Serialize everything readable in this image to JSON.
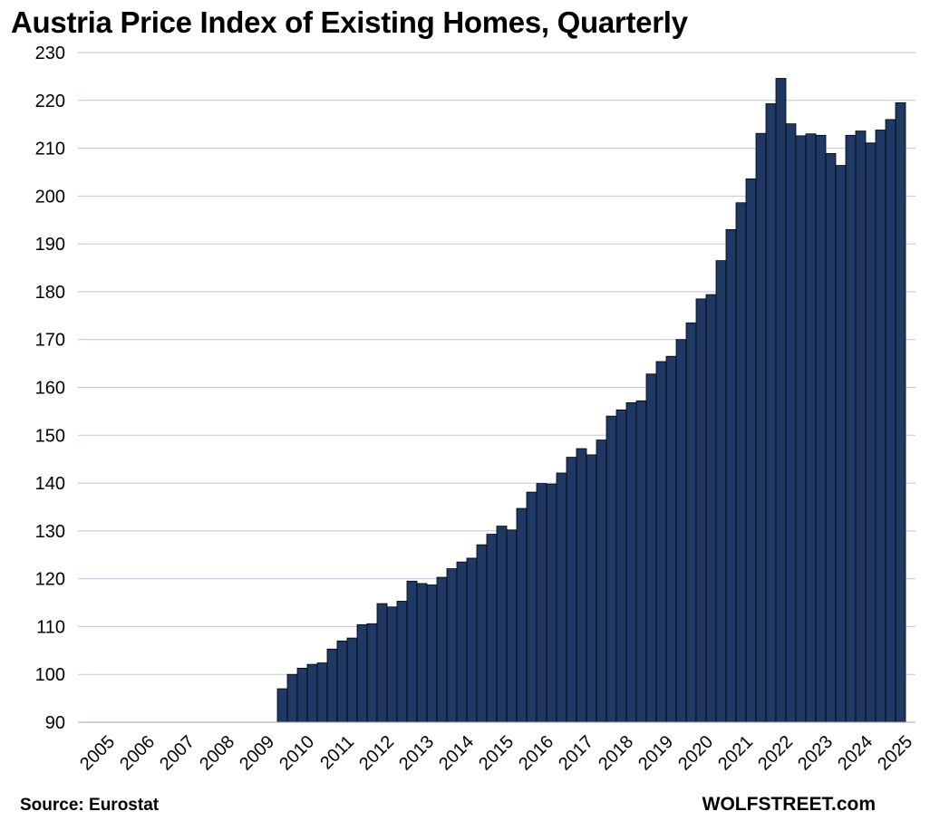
{
  "chart_data": {
    "type": "bar",
    "title": "Austria Price Index of Existing Homes, Quarterly",
    "xlabel": "",
    "ylabel": "",
    "ylim": [
      90,
      230
    ],
    "yticks": [
      90,
      100,
      110,
      120,
      130,
      140,
      150,
      160,
      170,
      180,
      190,
      200,
      210,
      220,
      230
    ],
    "xticks": [
      "2005",
      "2006",
      "2007",
      "2008",
      "2009",
      "2010",
      "2011",
      "2012",
      "2013",
      "2014",
      "2015",
      "2016",
      "2017",
      "2018",
      "2019",
      "2020",
      "2021",
      "2022",
      "2023",
      "2024",
      "2025"
    ],
    "x_start": "2005-Q1",
    "grid": true,
    "bar_color": "#1f3864",
    "bar_edge_color": "#000000",
    "values": [
      null,
      null,
      null,
      null,
      null,
      null,
      null,
      null,
      null,
      null,
      null,
      null,
      null,
      null,
      null,
      null,
      null,
      null,
      null,
      null,
      97.0,
      100.0,
      101.3,
      102.1,
      102.4,
      105.3,
      107.0,
      107.6,
      110.4,
      110.6,
      114.8,
      114.1,
      115.3,
      119.5,
      119.0,
      118.7,
      120.3,
      122.1,
      123.5,
      124.3,
      127.1,
      129.3,
      131.0,
      130.2,
      134.7,
      138.1,
      139.9,
      139.8,
      142.1,
      145.4,
      147.2,
      145.9,
      149.0,
      154.0,
      155.3,
      156.8,
      157.2,
      162.8,
      165.4,
      166.5,
      170.0,
      173.5,
      178.5,
      179.4,
      186.5,
      193.0,
      198.6,
      203.6,
      213.1,
      219.3,
      224.6,
      215.1,
      212.6,
      213.0,
      212.7,
      208.9,
      206.4,
      212.7,
      213.6,
      211.1,
      213.8,
      216.0,
      219.5
    ]
  },
  "footer": {
    "source": "Source: Eurostat",
    "credit": "WOLFSTREET.com"
  }
}
